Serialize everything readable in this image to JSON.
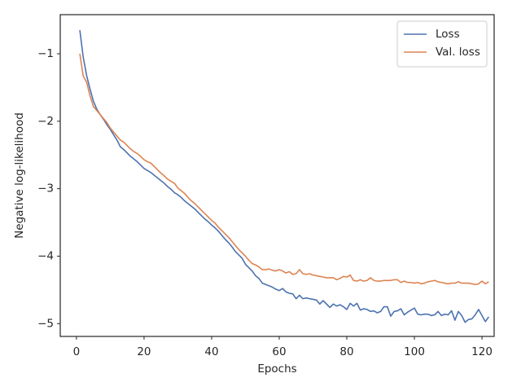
{
  "chart_data": {
    "type": "line",
    "xlabel": "Epochs",
    "ylabel": "Negative log-likelihood",
    "xlim": [
      -4.8,
      123.6
    ],
    "ylim": [
      -5.19,
      -0.42
    ],
    "xticks": [
      0,
      20,
      40,
      60,
      80,
      100,
      120
    ],
    "yticks": [
      {
        "value": -5,
        "label": "−5"
      },
      {
        "value": -4,
        "label": "−4"
      },
      {
        "value": -3,
        "label": "−3"
      },
      {
        "value": -2,
        "label": "−2"
      },
      {
        "value": -1,
        "label": "−1"
      }
    ],
    "legend": "upper right",
    "grid": false,
    "x": [
      1,
      2,
      3,
      4,
      5,
      6,
      7,
      8,
      9,
      10,
      11,
      12,
      13,
      14,
      15,
      16,
      17,
      18,
      19,
      20,
      21,
      22,
      23,
      24,
      25,
      26,
      27,
      28,
      29,
      30,
      31,
      32,
      33,
      34,
      35,
      36,
      37,
      38,
      39,
      40,
      41,
      42,
      43,
      44,
      45,
      46,
      47,
      48,
      49,
      50,
      51,
      52,
      53,
      54,
      55,
      56,
      57,
      58,
      59,
      60,
      61,
      62,
      63,
      64,
      65,
      66,
      67,
      68,
      69,
      70,
      71,
      72,
      73,
      74,
      75,
      76,
      77,
      78,
      79,
      80,
      81,
      82,
      83,
      84,
      85,
      86,
      87,
      88,
      89,
      90,
      91,
      92,
      93,
      94,
      95,
      96,
      97,
      98,
      99,
      100,
      101,
      102,
      103,
      104,
      105,
      106,
      107,
      108,
      109,
      110,
      111,
      112,
      113,
      114,
      115,
      116,
      117,
      118,
      119,
      120,
      121,
      122
    ],
    "series": [
      {
        "name": "Loss",
        "color": "#4c72b0",
        "values": [
          -0.65,
          -1.05,
          -1.32,
          -1.52,
          -1.7,
          -1.82,
          -1.9,
          -1.97,
          -2.05,
          -2.12,
          -2.2,
          -2.28,
          -2.38,
          -2.42,
          -2.47,
          -2.52,
          -2.56,
          -2.6,
          -2.65,
          -2.7,
          -2.73,
          -2.76,
          -2.8,
          -2.84,
          -2.88,
          -2.92,
          -2.97,
          -3.01,
          -3.06,
          -3.09,
          -3.13,
          -3.18,
          -3.22,
          -3.26,
          -3.3,
          -3.35,
          -3.4,
          -3.45,
          -3.49,
          -3.54,
          -3.58,
          -3.63,
          -3.69,
          -3.75,
          -3.8,
          -3.86,
          -3.93,
          -3.98,
          -4.03,
          -4.12,
          -4.17,
          -4.22,
          -4.29,
          -4.33,
          -4.4,
          -4.42,
          -4.44,
          -4.46,
          -4.49,
          -4.51,
          -4.48,
          -4.53,
          -4.55,
          -4.56,
          -4.63,
          -4.58,
          -4.63,
          -4.62,
          -4.63,
          -4.64,
          -4.65,
          -4.71,
          -4.66,
          -4.71,
          -4.76,
          -4.71,
          -4.74,
          -4.72,
          -4.75,
          -4.79,
          -4.7,
          -4.74,
          -4.7,
          -4.8,
          -4.78,
          -4.79,
          -4.82,
          -4.81,
          -4.84,
          -4.82,
          -4.75,
          -4.75,
          -4.89,
          -4.82,
          -4.81,
          -4.78,
          -4.87,
          -4.83,
          -4.8,
          -4.77,
          -4.86,
          -4.87,
          -4.86,
          -4.86,
          -4.88,
          -4.87,
          -4.82,
          -4.88,
          -4.86,
          -4.87,
          -4.81,
          -4.95,
          -4.82,
          -4.88,
          -4.98,
          -4.94,
          -4.93,
          -4.87,
          -4.79,
          -4.88,
          -4.97,
          -4.9
        ]
      },
      {
        "name": "Val. loss",
        "color": "#dd8452",
        "values": [
          -1.0,
          -1.33,
          -1.42,
          -1.62,
          -1.78,
          -1.84,
          -1.9,
          -1.96,
          -2.02,
          -2.1,
          -2.16,
          -2.22,
          -2.28,
          -2.31,
          -2.36,
          -2.41,
          -2.45,
          -2.48,
          -2.52,
          -2.57,
          -2.6,
          -2.62,
          -2.67,
          -2.72,
          -2.77,
          -2.81,
          -2.86,
          -2.89,
          -2.92,
          -2.99,
          -3.03,
          -3.07,
          -3.13,
          -3.18,
          -3.22,
          -3.27,
          -3.32,
          -3.37,
          -3.42,
          -3.47,
          -3.51,
          -3.57,
          -3.62,
          -3.67,
          -3.72,
          -3.78,
          -3.84,
          -3.9,
          -3.95,
          -4.0,
          -4.06,
          -4.11,
          -4.13,
          -4.16,
          -4.2,
          -4.2,
          -4.19,
          -4.21,
          -4.22,
          -4.2,
          -4.22,
          -4.25,
          -4.23,
          -4.27,
          -4.26,
          -4.2,
          -4.26,
          -4.27,
          -4.26,
          -4.28,
          -4.29,
          -4.3,
          -4.31,
          -4.32,
          -4.32,
          -4.32,
          -4.35,
          -4.33,
          -4.3,
          -4.31,
          -4.28,
          -4.36,
          -4.37,
          -4.35,
          -4.37,
          -4.36,
          -4.32,
          -4.36,
          -4.37,
          -4.37,
          -4.36,
          -4.36,
          -4.36,
          -4.35,
          -4.35,
          -4.39,
          -4.37,
          -4.39,
          -4.39,
          -4.4,
          -4.39,
          -4.41,
          -4.4,
          -4.38,
          -4.37,
          -4.36,
          -4.38,
          -4.39,
          -4.4,
          -4.41,
          -4.4,
          -4.4,
          -4.38,
          -4.4,
          -4.4,
          -4.4,
          -4.41,
          -4.42,
          -4.41,
          -4.37,
          -4.41,
          -4.38
        ]
      }
    ]
  }
}
